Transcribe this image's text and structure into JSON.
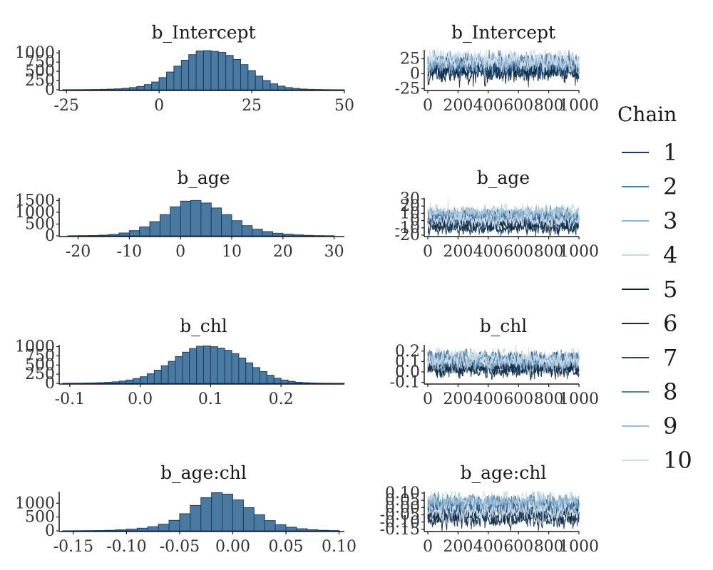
{
  "legend": {
    "title": "Chain",
    "chains": [
      "1",
      "2",
      "3",
      "4",
      "5",
      "6",
      "7",
      "8",
      "9",
      "10"
    ],
    "colors": [
      "#1b3a5c",
      "#4b7ea6",
      "#8db4d0",
      "#c6dbea",
      "#0b1f33",
      "#0e2d4d",
      "#1f4e79",
      "#4f80aa",
      "#9bbcd6",
      "#cfe0ed"
    ]
  },
  "colors": {
    "hist_fill": "#4a7aa0",
    "hist_edge": "#1b3d66"
  },
  "chart_data": [
    {
      "type": "bar",
      "kind": "histogram",
      "title": "b_Intercept",
      "bins": [
        -26,
        -24,
        -22,
        -20,
        -18,
        -16,
        -14,
        -12,
        -10,
        -8,
        -6,
        -4,
        -2,
        0,
        2,
        4,
        6,
        8,
        10,
        12,
        14,
        16,
        18,
        20,
        22,
        24,
        26,
        28,
        30,
        32,
        34,
        36,
        38,
        40,
        42,
        44,
        46,
        48,
        50
      ],
      "counts": [
        2,
        3,
        4,
        6,
        8,
        12,
        18,
        25,
        40,
        60,
        90,
        140,
        210,
        330,
        480,
        640,
        800,
        950,
        1050,
        1060,
        1040,
        1010,
        930,
        820,
        680,
        520,
        370,
        250,
        160,
        100,
        60,
        35,
        20,
        12,
        7,
        4,
        2,
        1
      ],
      "xlim": [
        -26,
        50
      ],
      "xticks": [
        -25,
        0,
        25,
        50
      ],
      "xtick_labels": [
        "-25",
        "0",
        "25",
        "50"
      ],
      "ylim": [
        0,
        1080
      ],
      "yticks": [
        0,
        250,
        500,
        750,
        1000
      ],
      "ytick_labels": [
        "0",
        "250",
        "500",
        "750",
        "1000"
      ]
    },
    {
      "type": "line",
      "kind": "trace",
      "title": "b_Intercept",
      "iterations": 1000,
      "chain_means": [
        8,
        18,
        14,
        24,
        2,
        6,
        12,
        20,
        16,
        22
      ],
      "chain_sd": 8,
      "xlim": [
        0,
        1000
      ],
      "xticks": [
        0,
        200,
        400,
        600,
        800,
        1000
      ],
      "xtick_labels": [
        "0",
        "200",
        "400",
        "600",
        "800",
        "1000"
      ],
      "ylim": [
        -27,
        40
      ],
      "yticks": [
        -25,
        0,
        25
      ],
      "ytick_labels": [
        "-25",
        "0",
        "25"
      ]
    },
    {
      "type": "bar",
      "kind": "histogram",
      "title": "b_age",
      "bins": [
        -22,
        -20,
        -18,
        -16,
        -14,
        -12,
        -10,
        -8,
        -6,
        -4,
        -2,
        0,
        2,
        4,
        6,
        8,
        10,
        12,
        14,
        16,
        18,
        20,
        22,
        24,
        26,
        28,
        30
      ],
      "counts": [
        5,
        10,
        15,
        30,
        60,
        120,
        220,
        380,
        600,
        900,
        1230,
        1470,
        1500,
        1390,
        1180,
        900,
        640,
        430,
        280,
        180,
        110,
        70,
        40,
        20,
        10,
        5
      ],
      "xlim": [
        -23,
        32
      ],
      "xticks": [
        -20,
        -10,
        0,
        10,
        20,
        30
      ],
      "xtick_labels": [
        "-20",
        "-10",
        "0",
        "10",
        "20",
        "30"
      ],
      "ylim": [
        0,
        1600
      ],
      "yticks": [
        0,
        500,
        1000,
        1500
      ],
      "ytick_labels": [
        "0",
        "500",
        "1000",
        "1500"
      ]
    },
    {
      "type": "line",
      "kind": "trace",
      "title": "b_age",
      "iterations": 1000,
      "chain_means": [
        -2,
        8,
        4,
        12,
        -6,
        -10,
        2,
        6,
        10,
        0
      ],
      "chain_sd": 5,
      "xlim": [
        0,
        1000
      ],
      "xticks": [
        0,
        200,
        400,
        600,
        800,
        1000
      ],
      "xtick_labels": [
        "0",
        "200",
        "400",
        "600",
        "800",
        "1000"
      ],
      "ylim": [
        -21,
        31
      ],
      "yticks": [
        -20,
        -10,
        0,
        10,
        20,
        30
      ],
      "ytick_labels": [
        "-20",
        "-10",
        "0",
        "10",
        "20",
        "30"
      ]
    },
    {
      "type": "bar",
      "kind": "histogram",
      "title": "b_chl",
      "bins": [
        -0.11,
        -0.1,
        -0.09,
        -0.08,
        -0.07,
        -0.06,
        -0.05,
        -0.04,
        -0.03,
        -0.02,
        -0.01,
        0.0,
        0.01,
        0.02,
        0.03,
        0.04,
        0.05,
        0.06,
        0.07,
        0.08,
        0.09,
        0.1,
        0.11,
        0.12,
        0.13,
        0.14,
        0.15,
        0.16,
        0.17,
        0.18,
        0.19,
        0.2,
        0.21,
        0.22,
        0.23,
        0.24,
        0.25,
        0.26,
        0.27,
        0.28,
        0.29
      ],
      "counts": [
        2,
        3,
        5,
        8,
        12,
        18,
        28,
        40,
        60,
        90,
        130,
        180,
        260,
        360,
        480,
        600,
        730,
        850,
        950,
        1010,
        1020,
        1000,
        960,
        900,
        810,
        690,
        560,
        430,
        320,
        220,
        140,
        90,
        55,
        30,
        18,
        10,
        5,
        3,
        2,
        1
      ],
      "xlim": [
        -0.11,
        0.29
      ],
      "xticks": [
        -0.1,
        0.0,
        0.1,
        0.2
      ],
      "xtick_labels": [
        "-0.1",
        "0.0",
        "0.1",
        "0.2"
      ],
      "ylim": [
        0,
        1050
      ],
      "yticks": [
        0,
        250,
        500,
        750,
        1000
      ],
      "ytick_labels": [
        "0",
        "250",
        "500",
        "750",
        "1000"
      ]
    },
    {
      "type": "line",
      "kind": "trace",
      "title": "b_chl",
      "iterations": 1000,
      "chain_means": [
        0.04,
        0.12,
        0.08,
        0.14,
        0.02,
        0.06,
        0.1,
        0.13,
        0.09,
        0.11
      ],
      "chain_sd": 0.04,
      "xlim": [
        0,
        1000
      ],
      "xticks": [
        0,
        200,
        400,
        600,
        800,
        1000
      ],
      "xtick_labels": [
        "0",
        "200",
        "400",
        "600",
        "800",
        "1000"
      ],
      "ylim": [
        -0.11,
        0.26
      ],
      "yticks": [
        -0.1,
        0.0,
        0.1,
        0.2
      ],
      "ytick_labels": [
        "-0.1",
        "0.0",
        "0.1",
        "0.2"
      ]
    },
    {
      "type": "bar",
      "kind": "histogram",
      "title": "b_age:chl",
      "bins": [
        -0.16,
        -0.15,
        -0.14,
        -0.13,
        -0.12,
        -0.11,
        -0.1,
        -0.09,
        -0.08,
        -0.07,
        -0.06,
        -0.05,
        -0.04,
        -0.03,
        -0.02,
        -0.01,
        0.0,
        0.01,
        0.02,
        0.03,
        0.04,
        0.05,
        0.06,
        0.07,
        0.08,
        0.09,
        0.1
      ],
      "counts": [
        3,
        5,
        8,
        12,
        20,
        35,
        60,
        95,
        150,
        240,
        380,
        620,
        920,
        1200,
        1380,
        1330,
        1120,
        840,
        580,
        370,
        220,
        130,
        75,
        40,
        20,
        10
      ],
      "xlim": [
        -0.16,
        0.105
      ],
      "xticks": [
        -0.15,
        -0.1,
        -0.05,
        0.0,
        0.05,
        0.1
      ],
      "xtick_labels": [
        "-0.15",
        "-0.10",
        "-0.05",
        "0.00",
        "0.05",
        "0.10"
      ],
      "ylim": [
        0,
        1420
      ],
      "yticks": [
        0,
        500,
        1000
      ],
      "ytick_labels": [
        "0",
        "500",
        "1000"
      ]
    },
    {
      "type": "line",
      "kind": "trace",
      "title": "b_age:chl",
      "iterations": 1000,
      "chain_means": [
        -0.02,
        0.03,
        0.0,
        0.05,
        -0.06,
        -0.08,
        -0.01,
        0.02,
        0.04,
        -0.03
      ],
      "chain_sd": 0.03,
      "xlim": [
        0,
        1000
      ],
      "xticks": [
        0,
        200,
        400,
        600,
        800,
        1000
      ],
      "xtick_labels": [
        "0",
        "200",
        "400",
        "600",
        "800",
        "1000"
      ],
      "ylim": [
        -0.16,
        0.11
      ],
      "yticks": [
        -0.15,
        -0.1,
        -0.05,
        0.0,
        0.05,
        0.1
      ],
      "ytick_labels": [
        "-0.15",
        "-0.10",
        "-0.05",
        "0.00",
        "0.05",
        "0.10"
      ]
    }
  ]
}
